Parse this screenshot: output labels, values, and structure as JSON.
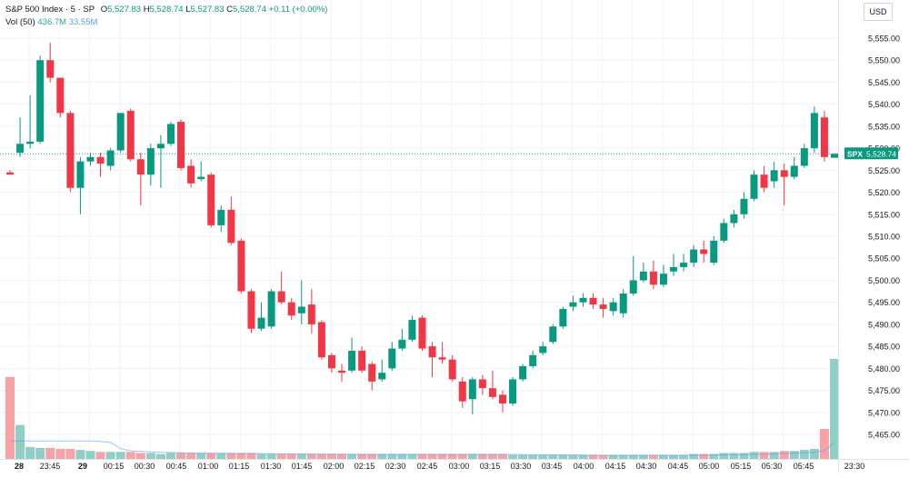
{
  "legend": {
    "symbol": "S&P 500 Index · 5 · SP",
    "open_label": "O",
    "open": "5,527.83",
    "high_label": "H",
    "high": "5,528.74",
    "low_label": "L",
    "low": "5,527.83",
    "close_label": "C",
    "close": "5,528.74",
    "change": "+0.11 (+0.00%)",
    "vol_label": "Vol (50)",
    "vol_value": "436.7M",
    "vol_ma": "33.55M"
  },
  "currency": "USD",
  "last_price_tag": {
    "symbol": "SPX",
    "price": "5,528.74"
  },
  "colors": {
    "up": "#089981",
    "down": "#f23645",
    "vol_up": "#8fcfc6",
    "vol_down": "#f7a3a6",
    "grid": "#f0f3fa",
    "last_line": "#089981"
  },
  "chart_data": {
    "type": "candlestick",
    "y_axis_ticks": [
      "5,555.00",
      "5,550.00",
      "5,545.00",
      "5,540.00",
      "5,535.00",
      "5,530.00",
      "5,525.00",
      "5,520.00",
      "5,515.00",
      "5,510.00",
      "5,505.00",
      "5,500.00",
      "5,495.00",
      "5,490.00",
      "5,485.00",
      "5,480.00",
      "5,475.00",
      "5,470.00",
      "5,465.00"
    ],
    "ylim": [
      5462,
      5558
    ],
    "x_axis_ticks": [
      "28",
      "23:45",
      "29",
      "00:15",
      "00:30",
      "00:45",
      "01:00",
      "01:15",
      "01:30",
      "01:45",
      "02:00",
      "02:15",
      "02:30",
      "02:45",
      "03:00",
      "03:15",
      "03:30",
      "03:45",
      "04:00",
      "04:15",
      "04:30",
      "04:45",
      "05:00",
      "05:15",
      "05:30",
      "05:45",
      "23:30"
    ],
    "x_axis_bold": [
      "28",
      "29"
    ],
    "candles": [
      {
        "o": 5524.5,
        "h": 5525.0,
        "l": 5524.0,
        "c": 5524.0,
        "v": 0.82
      },
      {
        "o": 5529.0,
        "h": 5537.0,
        "l": 5528.0,
        "c": 5531.0,
        "v": 0.34
      },
      {
        "o": 5531.0,
        "h": 5542.0,
        "l": 5530.0,
        "c": 5531.5,
        "v": 0.12
      },
      {
        "o": 5531.5,
        "h": 5551.0,
        "l": 5531.0,
        "c": 5550.0,
        "v": 0.11
      },
      {
        "o": 5550.0,
        "h": 5554.0,
        "l": 5545.0,
        "c": 5546.0,
        "v": 0.11
      },
      {
        "o": 5546.0,
        "h": 5546.0,
        "l": 5537.0,
        "c": 5538.0,
        "v": 0.1
      },
      {
        "o": 5538.0,
        "h": 5538.5,
        "l": 5520.0,
        "c": 5521.0,
        "v": 0.1
      },
      {
        "o": 5521.0,
        "h": 5528.0,
        "l": 5515.0,
        "c": 5527.0,
        "v": 0.09
      },
      {
        "o": 5527.0,
        "h": 5529.0,
        "l": 5526.0,
        "c": 5528.0,
        "v": 0.08
      },
      {
        "o": 5528.0,
        "h": 5529.0,
        "l": 5523.5,
        "c": 5526.5,
        "v": 0.07
      },
      {
        "o": 5526.0,
        "h": 5530.0,
        "l": 5525.0,
        "c": 5529.5,
        "v": 0.07
      },
      {
        "o": 5529.5,
        "h": 5538.0,
        "l": 5529.0,
        "c": 5538.0,
        "v": 0.07
      },
      {
        "o": 5538.5,
        "h": 5539.0,
        "l": 5527.0,
        "c": 5527.5,
        "v": 0.07
      },
      {
        "o": 5527.5,
        "h": 5529.0,
        "l": 5517.0,
        "c": 5524.0,
        "v": 0.06
      },
      {
        "o": 5524.0,
        "h": 5531.0,
        "l": 5521.5,
        "c": 5530.0,
        "v": 0.06
      },
      {
        "o": 5530.0,
        "h": 5533.0,
        "l": 5521.0,
        "c": 5531.0,
        "v": 0.05
      },
      {
        "o": 5531.0,
        "h": 5536.0,
        "l": 5530.5,
        "c": 5535.5,
        "v": 0.06
      },
      {
        "o": 5536.0,
        "h": 5536.5,
        "l": 5525.0,
        "c": 5525.5,
        "v": 0.06
      },
      {
        "o": 5526.0,
        "h": 5527.5,
        "l": 5521.0,
        "c": 5522.0,
        "v": 0.06
      },
      {
        "o": 5523.0,
        "h": 5527.0,
        "l": 5522.5,
        "c": 5523.5,
        "v": 0.06
      },
      {
        "o": 5524.0,
        "h": 5524.5,
        "l": 5512.0,
        "c": 5512.5,
        "v": 0.06
      },
      {
        "o": 5512.5,
        "h": 5517.0,
        "l": 5511.0,
        "c": 5516.0,
        "v": 0.06
      },
      {
        "o": 5516.0,
        "h": 5519.0,
        "l": 5508.0,
        "c": 5508.5,
        "v": 0.06
      },
      {
        "o": 5509.0,
        "h": 5509.5,
        "l": 5497.0,
        "c": 5497.5,
        "v": 0.06
      },
      {
        "o": 5497.5,
        "h": 5498.0,
        "l": 5488.0,
        "c": 5489.0,
        "v": 0.06
      },
      {
        "o": 5489.0,
        "h": 5495.0,
        "l": 5488.5,
        "c": 5491.5,
        "v": 0.05
      },
      {
        "o": 5489.5,
        "h": 5498.0,
        "l": 5489.0,
        "c": 5497.5,
        "v": 0.05
      },
      {
        "o": 5497.5,
        "h": 5502.0,
        "l": 5494.5,
        "c": 5495.0,
        "v": 0.05
      },
      {
        "o": 5495.0,
        "h": 5496.0,
        "l": 5491.0,
        "c": 5492.0,
        "v": 0.05
      },
      {
        "o": 5492.5,
        "h": 5500.0,
        "l": 5490.0,
        "c": 5494.0,
        "v": 0.05
      },
      {
        "o": 5494.5,
        "h": 5498.0,
        "l": 5488.0,
        "c": 5490.0,
        "v": 0.05
      },
      {
        "o": 5490.5,
        "h": 5491.0,
        "l": 5482.0,
        "c": 5482.5,
        "v": 0.05
      },
      {
        "o": 5483.0,
        "h": 5483.5,
        "l": 5479.0,
        "c": 5480.0,
        "v": 0.05
      },
      {
        "o": 5479.5,
        "h": 5481.0,
        "l": 5477.0,
        "c": 5479.0,
        "v": 0.05
      },
      {
        "o": 5479.5,
        "h": 5487.0,
        "l": 5479.0,
        "c": 5484.0,
        "v": 0.05
      },
      {
        "o": 5484.0,
        "h": 5485.0,
        "l": 5479.0,
        "c": 5479.5,
        "v": 0.05
      },
      {
        "o": 5481.0,
        "h": 5481.5,
        "l": 5475.0,
        "c": 5477.0,
        "v": 0.05
      },
      {
        "o": 5477.5,
        "h": 5482.0,
        "l": 5477.0,
        "c": 5479.0,
        "v": 0.05
      },
      {
        "o": 5480.0,
        "h": 5486.0,
        "l": 5479.5,
        "c": 5484.5,
        "v": 0.05
      },
      {
        "o": 5484.5,
        "h": 5489.0,
        "l": 5484.0,
        "c": 5486.5,
        "v": 0.05
      },
      {
        "o": 5486.5,
        "h": 5492.0,
        "l": 5486.0,
        "c": 5491.0,
        "v": 0.05
      },
      {
        "o": 5491.5,
        "h": 5492.0,
        "l": 5484.0,
        "c": 5484.5,
        "v": 0.05
      },
      {
        "o": 5485.0,
        "h": 5486.0,
        "l": 5478.0,
        "c": 5482.5,
        "v": 0.05
      },
      {
        "o": 5482.5,
        "h": 5486.0,
        "l": 5481.0,
        "c": 5482.0,
        "v": 0.05
      },
      {
        "o": 5482.0,
        "h": 5483.0,
        "l": 5477.0,
        "c": 5477.5,
        "v": 0.05
      },
      {
        "o": 5477.0,
        "h": 5478.0,
        "l": 5471.0,
        "c": 5472.5,
        "v": 0.05
      },
      {
        "o": 5473.0,
        "h": 5478.0,
        "l": 5469.5,
        "c": 5477.5,
        "v": 0.05
      },
      {
        "o": 5477.5,
        "h": 5478.5,
        "l": 5474.0,
        "c": 5475.5,
        "v": 0.05
      },
      {
        "o": 5475.5,
        "h": 5479.5,
        "l": 5473.0,
        "c": 5473.5,
        "v": 0.05
      },
      {
        "o": 5474.0,
        "h": 5475.0,
        "l": 5470.0,
        "c": 5472.0,
        "v": 0.05
      },
      {
        "o": 5472.0,
        "h": 5478.0,
        "l": 5471.5,
        "c": 5477.5,
        "v": 0.04
      },
      {
        "o": 5477.5,
        "h": 5481.0,
        "l": 5477.0,
        "c": 5480.5,
        "v": 0.04
      },
      {
        "o": 5480.5,
        "h": 5484.0,
        "l": 5480.0,
        "c": 5483.0,
        "v": 0.04
      },
      {
        "o": 5483.5,
        "h": 5486.0,
        "l": 5483.0,
        "c": 5485.0,
        "v": 0.04
      },
      {
        "o": 5486.0,
        "h": 5490.0,
        "l": 5485.5,
        "c": 5489.5,
        "v": 0.04
      },
      {
        "o": 5489.5,
        "h": 5494.0,
        "l": 5489.0,
        "c": 5493.5,
        "v": 0.04
      },
      {
        "o": 5494.0,
        "h": 5496.5,
        "l": 5493.0,
        "c": 5495.0,
        "v": 0.04
      },
      {
        "o": 5495.0,
        "h": 5497.0,
        "l": 5494.0,
        "c": 5496.0,
        "v": 0.04
      },
      {
        "o": 5496.0,
        "h": 5497.0,
        "l": 5493.5,
        "c": 5494.5,
        "v": 0.04
      },
      {
        "o": 5494.5,
        "h": 5496.0,
        "l": 5491.5,
        "c": 5493.5,
        "v": 0.04
      },
      {
        "o": 5493.0,
        "h": 5496.0,
        "l": 5492.0,
        "c": 5495.0,
        "v": 0.04
      },
      {
        "o": 5492.5,
        "h": 5498.0,
        "l": 5491.5,
        "c": 5497.0,
        "v": 0.04
      },
      {
        "o": 5497.0,
        "h": 5505.5,
        "l": 5496.5,
        "c": 5500.0,
        "v": 0.04
      },
      {
        "o": 5500.0,
        "h": 5504.0,
        "l": 5499.5,
        "c": 5502.0,
        "v": 0.04
      },
      {
        "o": 5502.0,
        "h": 5504.5,
        "l": 5498.0,
        "c": 5499.0,
        "v": 0.04
      },
      {
        "o": 5499.0,
        "h": 5503.5,
        "l": 5498.5,
        "c": 5501.5,
        "v": 0.04
      },
      {
        "o": 5502.0,
        "h": 5506.0,
        "l": 5501.0,
        "c": 5503.0,
        "v": 0.04
      },
      {
        "o": 5503.0,
        "h": 5506.0,
        "l": 5502.0,
        "c": 5504.0,
        "v": 0.04
      },
      {
        "o": 5504.0,
        "h": 5508.0,
        "l": 5503.0,
        "c": 5507.0,
        "v": 0.05
      },
      {
        "o": 5507.0,
        "h": 5509.0,
        "l": 5504.0,
        "c": 5506.0,
        "v": 0.05
      },
      {
        "o": 5504.0,
        "h": 5510.0,
        "l": 5503.5,
        "c": 5509.0,
        "v": 0.05
      },
      {
        "o": 5509.0,
        "h": 5514.0,
        "l": 5508.5,
        "c": 5513.0,
        "v": 0.06
      },
      {
        "o": 5513.0,
        "h": 5516.0,
        "l": 5512.0,
        "c": 5515.0,
        "v": 0.06
      },
      {
        "o": 5515.0,
        "h": 5520.0,
        "l": 5514.0,
        "c": 5518.5,
        "v": 0.06
      },
      {
        "o": 5518.5,
        "h": 5525.0,
        "l": 5518.0,
        "c": 5524.0,
        "v": 0.07
      },
      {
        "o": 5524.0,
        "h": 5526.0,
        "l": 5520.0,
        "c": 5521.0,
        "v": 0.07
      },
      {
        "o": 5522.5,
        "h": 5527.0,
        "l": 5521.0,
        "c": 5525.0,
        "v": 0.07
      },
      {
        "o": 5525.0,
        "h": 5526.5,
        "l": 5517.0,
        "c": 5523.5,
        "v": 0.08
      },
      {
        "o": 5523.5,
        "h": 5528.0,
        "l": 5523.0,
        "c": 5526.0,
        "v": 0.08
      },
      {
        "o": 5526.0,
        "h": 5531.0,
        "l": 5525.5,
        "c": 5530.0,
        "v": 0.09
      },
      {
        "o": 5530.0,
        "h": 5539.5,
        "l": 5529.0,
        "c": 5538.0,
        "v": 0.1
      },
      {
        "o": 5537.0,
        "h": 5538.5,
        "l": 5527.0,
        "c": 5528.0,
        "v": 0.3
      },
      {
        "o": 5527.83,
        "h": 5528.74,
        "l": 5527.83,
        "c": 5528.74,
        "v": 1.0
      }
    ]
  }
}
